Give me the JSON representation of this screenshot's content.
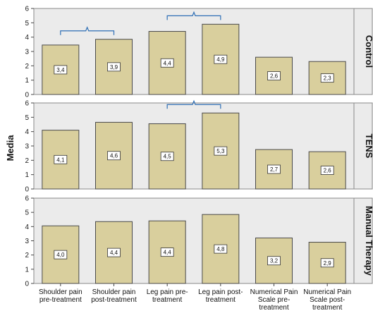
{
  "chart_data": {
    "type": "bar",
    "ylabel": "Media",
    "ylim": [
      0,
      6
    ],
    "yticks": [
      0,
      1,
      2,
      3,
      4,
      5,
      6
    ],
    "categories": [
      [
        "Shoulder pain",
        "pre-treatment"
      ],
      [
        "Shoulder pain",
        "post-treatment"
      ],
      [
        "Leg pain pre-",
        "treatment"
      ],
      [
        "Leg pain post-",
        "treatment"
      ],
      [
        "Numerical Pain",
        "Scale pre-",
        "treatment"
      ],
      [
        "Numerical Pain",
        "Scale post-",
        "treatment"
      ]
    ],
    "panels": [
      {
        "label": "Control",
        "values": [
          3.45,
          3.85,
          4.4,
          4.9,
          2.6,
          2.3
        ],
        "data_labels": [
          "3,4",
          "3,9",
          "4,4",
          "4,9",
          "2,6",
          "2,3"
        ],
        "brackets": [
          [
            0,
            1
          ],
          [
            2,
            3
          ]
        ]
      },
      {
        "label": "TENS",
        "values": [
          4.1,
          4.65,
          4.55,
          5.3,
          2.75,
          2.6
        ],
        "data_labels": [
          "4,1",
          "4,6",
          "4,5",
          "5,3",
          "2,7",
          "2,6"
        ],
        "brackets": [
          [
            2,
            3
          ]
        ]
      },
      {
        "label": "Manual Therapy",
        "values": [
          4.05,
          4.35,
          4.4,
          4.85,
          3.2,
          2.9
        ],
        "data_labels": [
          "4,0",
          "4,4",
          "4,4",
          "4,8",
          "3,2",
          "2,9"
        ],
        "brackets": []
      }
    ],
    "colors": {
      "bar_fill": "#d9cf9d",
      "bar_stroke": "#4a4a4a",
      "panel_bg": "#ebebeb",
      "strip_bg": "#ebebeb",
      "bracket": "#2e6fb5"
    },
    "grid": false
  }
}
